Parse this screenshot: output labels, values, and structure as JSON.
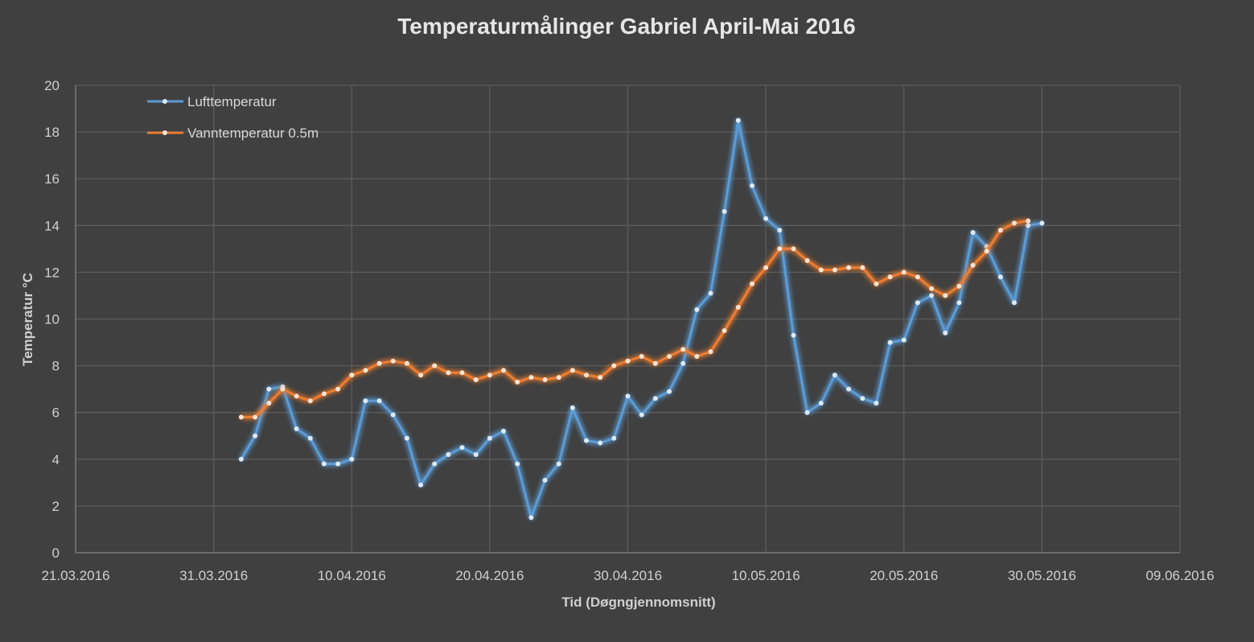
{
  "chart_data": {
    "type": "line",
    "title": "Temperaturmålinger Gabriel April-Mai 2016",
    "xlabel": "Tid (Døgngjennomsnitt)",
    "ylabel": "Temperatur °C",
    "xlim": [
      "2016-03-21",
      "2016-06-09"
    ],
    "ylim": [
      0,
      20
    ],
    "x_ticks": [
      "21.03.2016",
      "31.03.2016",
      "10.04.2016",
      "20.04.2016",
      "30.04.2016",
      "10.05.2016",
      "20.05.2016",
      "30.05.2016",
      "09.06.2016"
    ],
    "y_ticks": [
      "0",
      "2",
      "4",
      "6",
      "8",
      "10",
      "12",
      "14",
      "16",
      "18",
      "20"
    ],
    "grid": true,
    "legend_position": "top-left",
    "series": [
      {
        "name": "Lufttemperatur",
        "color": "#5b9bd5",
        "x": [
          "2016-04-02",
          "2016-04-03",
          "2016-04-04",
          "2016-04-05",
          "2016-04-06",
          "2016-04-07",
          "2016-04-08",
          "2016-04-09",
          "2016-04-10",
          "2016-04-11",
          "2016-04-12",
          "2016-04-13",
          "2016-04-14",
          "2016-04-15",
          "2016-04-16",
          "2016-04-17",
          "2016-04-18",
          "2016-04-19",
          "2016-04-20",
          "2016-04-21",
          "2016-04-22",
          "2016-04-23",
          "2016-04-24",
          "2016-04-25",
          "2016-04-26",
          "2016-04-27",
          "2016-04-28",
          "2016-04-29",
          "2016-04-30",
          "2016-05-01",
          "2016-05-02",
          "2016-05-03",
          "2016-05-04",
          "2016-05-05",
          "2016-05-06",
          "2016-05-07",
          "2016-05-08",
          "2016-05-09",
          "2016-05-10",
          "2016-05-11",
          "2016-05-12",
          "2016-05-13",
          "2016-05-14",
          "2016-05-15",
          "2016-05-16",
          "2016-05-17",
          "2016-05-18",
          "2016-05-19",
          "2016-05-20",
          "2016-05-21",
          "2016-05-22",
          "2016-05-23",
          "2016-05-24",
          "2016-05-25",
          "2016-05-26",
          "2016-05-27",
          "2016-05-28",
          "2016-05-29",
          "2016-05-30"
        ],
        "values": [
          4.0,
          5.0,
          7.0,
          7.1,
          5.3,
          4.9,
          3.8,
          3.8,
          4.0,
          6.5,
          6.5,
          5.9,
          4.9,
          2.9,
          3.8,
          4.2,
          4.5,
          4.2,
          4.9,
          5.2,
          3.8,
          1.5,
          3.1,
          3.8,
          6.2,
          4.8,
          4.7,
          4.9,
          6.7,
          5.9,
          6.6,
          6.9,
          8.1,
          10.4,
          11.1,
          14.6,
          18.5,
          15.7,
          14.3,
          13.8,
          9.3,
          6.0,
          6.4,
          7.6,
          7.0,
          6.6,
          6.4,
          9.0,
          9.1,
          10.7,
          11.0,
          9.4,
          10.7,
          13.7,
          13.1,
          11.8,
          10.7,
          14.0,
          14.1
        ]
      },
      {
        "name": "Vanntemperatur 0.5m",
        "color": "#ed7d31",
        "x": [
          "2016-04-02",
          "2016-04-03",
          "2016-04-04",
          "2016-04-05",
          "2016-04-06",
          "2016-04-07",
          "2016-04-08",
          "2016-04-09",
          "2016-04-10",
          "2016-04-11",
          "2016-04-12",
          "2016-04-13",
          "2016-04-14",
          "2016-04-15",
          "2016-04-16",
          "2016-04-17",
          "2016-04-18",
          "2016-04-19",
          "2016-04-20",
          "2016-04-21",
          "2016-04-22",
          "2016-04-23",
          "2016-04-24",
          "2016-04-25",
          "2016-04-26",
          "2016-04-27",
          "2016-04-28",
          "2016-04-29",
          "2016-04-30",
          "2016-05-01",
          "2016-05-02",
          "2016-05-03",
          "2016-05-04",
          "2016-05-05",
          "2016-05-06",
          "2016-05-07",
          "2016-05-08",
          "2016-05-09",
          "2016-05-10",
          "2016-05-11",
          "2016-05-12",
          "2016-05-13",
          "2016-05-14",
          "2016-05-15",
          "2016-05-16",
          "2016-05-17",
          "2016-05-18",
          "2016-05-19",
          "2016-05-20",
          "2016-05-21",
          "2016-05-22",
          "2016-05-23",
          "2016-05-24",
          "2016-05-25",
          "2016-05-26",
          "2016-05-27",
          "2016-05-28",
          "2016-05-29"
        ],
        "values": [
          5.8,
          5.8,
          6.4,
          7.0,
          6.7,
          6.5,
          6.8,
          7.0,
          7.6,
          7.8,
          8.1,
          8.2,
          8.1,
          7.6,
          8.0,
          7.7,
          7.7,
          7.4,
          7.6,
          7.8,
          7.3,
          7.5,
          7.4,
          7.5,
          7.8,
          7.6,
          7.5,
          8.0,
          8.2,
          8.4,
          8.1,
          8.4,
          8.7,
          8.4,
          8.6,
          9.5,
          10.5,
          11.5,
          12.2,
          13.0,
          13.0,
          12.5,
          12.1,
          12.1,
          12.2,
          12.2,
          11.5,
          11.8,
          12.0,
          11.8,
          11.3,
          11.0,
          11.4,
          12.3,
          12.9,
          13.8,
          14.1,
          14.2
        ]
      }
    ]
  }
}
